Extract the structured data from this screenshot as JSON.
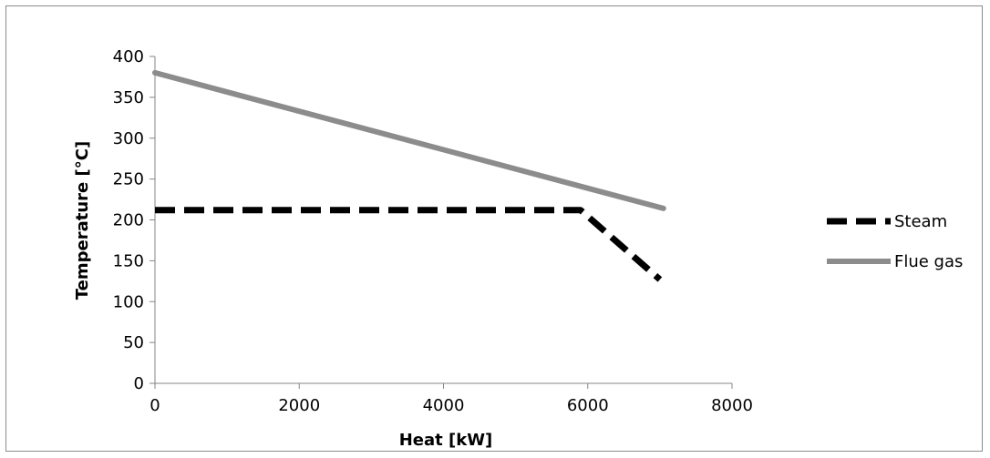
{
  "chart_data": {
    "type": "line",
    "title": "",
    "xlabel": "Heat [kW]",
    "ylabel": "Temperature [°C]",
    "xlim": [
      0,
      8000
    ],
    "ylim": [
      0,
      400
    ],
    "xticks": [
      0,
      2000,
      4000,
      6000,
      8000
    ],
    "yticks": [
      0,
      50,
      100,
      150,
      200,
      250,
      300,
      350,
      400
    ],
    "grid": false,
    "legend_position": "right",
    "series": [
      {
        "name": "Steam",
        "style": "dashed",
        "color": "#000000",
        "points": [
          [
            0,
            212
          ],
          [
            5900,
            212
          ],
          [
            7000,
            127
          ]
        ]
      },
      {
        "name": "Flue gas",
        "style": "solid",
        "color": "#8c8c8c",
        "points": [
          [
            0,
            380
          ],
          [
            7050,
            214
          ]
        ]
      }
    ]
  }
}
